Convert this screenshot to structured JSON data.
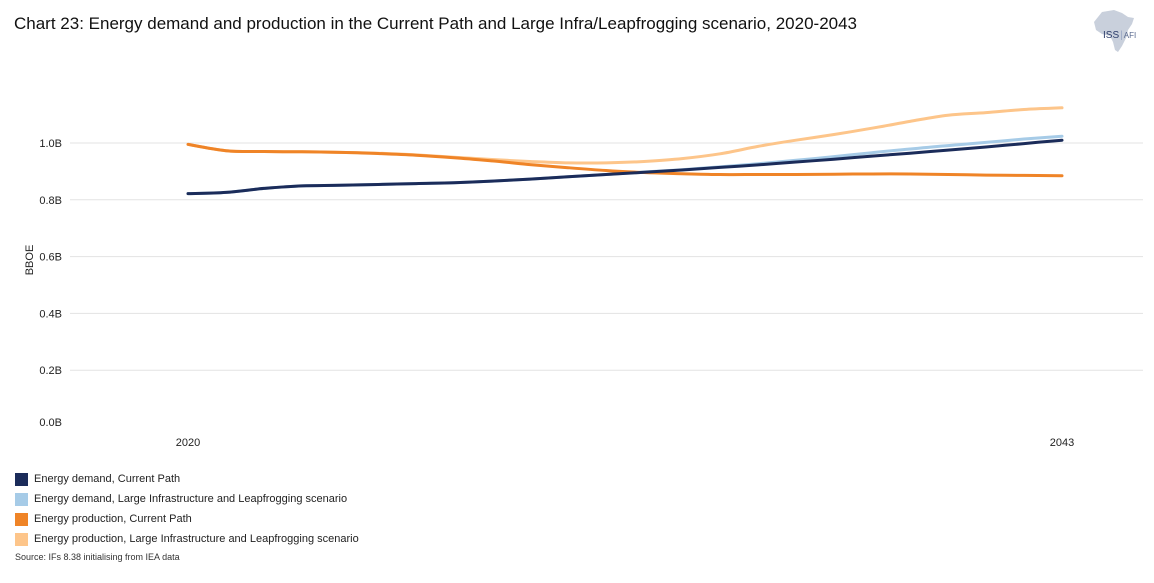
{
  "title": "Chart 23: Energy demand and production in the Current Path and Large Infra/Leapfrogging scenario, 2020-2043",
  "logo": {
    "main": "ISS",
    "sub": "AFI"
  },
  "source": "Source: IFs 8.38 initialising from IEA data",
  "chart_data": {
    "type": "line",
    "title": "Chart 23: Energy demand and production in the Current Path and Large Infra/Leapfrogging scenario, 2020-2043",
    "xlabel": "",
    "ylabel": "BBOE",
    "xlim": [
      2020,
      2043
    ],
    "ylim": [
      0,
      1.1
    ],
    "x_ticks": [
      {
        "value": 2020,
        "label": "2020"
      },
      {
        "value": 2043,
        "label": "2043"
      }
    ],
    "y_ticks": [
      {
        "value": 0.0,
        "label": "0.0B"
      },
      {
        "value": 0.2,
        "label": "0.2B"
      },
      {
        "value": 0.4,
        "label": "0.4B"
      },
      {
        "value": 0.6,
        "label": "0.6B"
      },
      {
        "value": 0.8,
        "label": "0.8B"
      },
      {
        "value": 1.0,
        "label": "1.0B"
      }
    ],
    "grid": true,
    "legend_position": "bottom-left",
    "x": [
      2020,
      2021,
      2022,
      2023,
      2024,
      2025,
      2026,
      2027,
      2028,
      2029,
      2030,
      2031,
      2032,
      2033,
      2034,
      2035,
      2036,
      2037,
      2038,
      2039,
      2040,
      2041,
      2042,
      2043
    ],
    "series": [
      {
        "name": "Energy production, Large Infrastructure and Leapfrogging scenario",
        "color": "#fdc58a",
        "values": [
          0.995,
          0.973,
          0.97,
          0.969,
          0.967,
          0.964,
          0.958,
          0.95,
          0.942,
          0.935,
          0.93,
          0.93,
          0.935,
          0.945,
          0.962,
          0.988,
          1.01,
          1.03,
          1.052,
          1.076,
          1.098,
          1.107,
          1.118,
          1.124
        ]
      },
      {
        "name": "Energy demand, Large Infrastructure and Leapfrogging scenario",
        "color": "#a6cbe7",
        "values": [
          0.822,
          0.826,
          0.84,
          0.849,
          0.851,
          0.854,
          0.857,
          0.86,
          0.866,
          0.873,
          0.881,
          0.889,
          0.898,
          0.906,
          0.916,
          0.927,
          0.939,
          0.952,
          0.966,
          0.979,
          0.991,
          1.002,
          1.014,
          1.024
        ]
      },
      {
        "name": "Energy production, Current Path",
        "color": "#ef8427",
        "values": [
          0.995,
          0.973,
          0.97,
          0.969,
          0.967,
          0.963,
          0.957,
          0.948,
          0.937,
          0.924,
          0.913,
          0.903,
          0.896,
          0.892,
          0.889,
          0.889,
          0.889,
          0.89,
          0.891,
          0.891,
          0.889,
          0.887,
          0.886,
          0.885
        ]
      },
      {
        "name": "Energy demand, Current Path",
        "color": "#1b2c5a",
        "values": [
          0.822,
          0.826,
          0.84,
          0.849,
          0.851,
          0.854,
          0.857,
          0.86,
          0.866,
          0.873,
          0.881,
          0.889,
          0.897,
          0.905,
          0.914,
          0.923,
          0.933,
          0.943,
          0.954,
          0.964,
          0.975,
          0.986,
          0.998,
          1.01
        ]
      }
    ]
  },
  "legend": [
    {
      "label": "Energy demand, Current Path",
      "color": "#1b2c5a"
    },
    {
      "label": "Energy demand, Large Infrastructure and Leapfrogging scenario",
      "color": "#a6cbe7"
    },
    {
      "label": "Energy production, Current Path",
      "color": "#ef8427"
    },
    {
      "label": "Energy production, Large Infrastructure and Leapfrogging scenario",
      "color": "#fdc58a"
    }
  ]
}
